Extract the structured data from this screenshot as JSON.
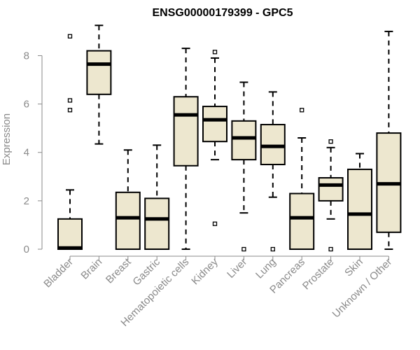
{
  "chart_data": {
    "type": "box",
    "title": "ENSG00000179399 - GPC5",
    "xlabel": "",
    "ylabel": "Expression",
    "ylim": [
      0,
      9.2
    ],
    "y_ticks": [
      0,
      2,
      4,
      6,
      8
    ],
    "colors": {
      "box_fill": "#ede7cf",
      "stroke": "#000000",
      "label": "#8a8a8a"
    },
    "categories": [
      "Bladder",
      "Brain",
      "Breast",
      "Gastric",
      "Hematopoietic cells",
      "Kidney",
      "Liver",
      "Lung",
      "Pancreas",
      "Prostate",
      "Skin",
      "Unknown / Other"
    ],
    "boxes": [
      {
        "category": "Bladder",
        "q1": 0.0,
        "median": 0.05,
        "q3": 1.25,
        "whisker_low": 0.0,
        "whisker_high": 2.45,
        "outliers": [
          5.75,
          6.15,
          8.8
        ]
      },
      {
        "category": "Brain",
        "q1": 6.4,
        "median": 7.65,
        "q3": 8.2,
        "whisker_low": 4.35,
        "whisker_high": 9.25,
        "outliers": []
      },
      {
        "category": "Breast",
        "q1": 0.0,
        "median": 1.3,
        "q3": 2.35,
        "whisker_low": 0.0,
        "whisker_high": 4.1,
        "outliers": []
      },
      {
        "category": "Gastric",
        "q1": 0.0,
        "median": 1.25,
        "q3": 2.1,
        "whisker_low": 0.0,
        "whisker_high": 4.3,
        "outliers": []
      },
      {
        "category": "Hematopoietic cells",
        "q1": 3.45,
        "median": 5.55,
        "q3": 6.3,
        "whisker_low": 0.0,
        "whisker_high": 8.3,
        "outliers": []
      },
      {
        "category": "Kidney",
        "q1": 4.45,
        "median": 5.35,
        "q3": 5.9,
        "whisker_low": 3.7,
        "whisker_high": 7.9,
        "outliers": [
          1.05,
          8.15
        ]
      },
      {
        "category": "Liver",
        "q1": 3.7,
        "median": 4.6,
        "q3": 5.3,
        "whisker_low": 1.5,
        "whisker_high": 6.9,
        "outliers": [
          0.0
        ]
      },
      {
        "category": "Lung",
        "q1": 3.5,
        "median": 4.25,
        "q3": 5.15,
        "whisker_low": 2.15,
        "whisker_high": 6.5,
        "outliers": [
          0.0
        ]
      },
      {
        "category": "Pancreas",
        "q1": 0.0,
        "median": 1.3,
        "q3": 2.3,
        "whisker_low": 0.0,
        "whisker_high": 4.6,
        "outliers": [
          5.75
        ]
      },
      {
        "category": "Prostate",
        "q1": 2.0,
        "median": 2.65,
        "q3": 2.95,
        "whisker_low": 1.25,
        "whisker_high": 4.2,
        "outliers": [
          0.0,
          4.45
        ]
      },
      {
        "category": "Skin",
        "q1": 0.0,
        "median": 1.45,
        "q3": 3.3,
        "whisker_low": 0.0,
        "whisker_high": 3.95,
        "outliers": []
      },
      {
        "category": "Unknown / Other",
        "q1": 0.7,
        "median": 2.7,
        "q3": 4.8,
        "whisker_low": 0.0,
        "whisker_high": 9.0,
        "outliers": []
      }
    ]
  }
}
